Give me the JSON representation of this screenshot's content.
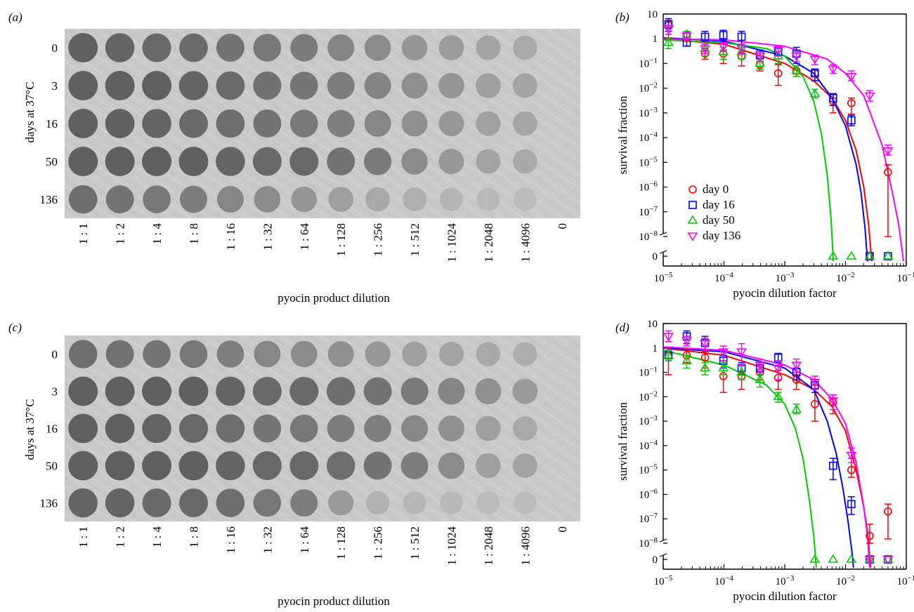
{
  "figure": {
    "panels": [
      {
        "kind": "photo",
        "label": "(a)",
        "row_label": "days at 37°C",
        "rows": [
          "0",
          "3",
          "16",
          "50",
          "136"
        ],
        "columns": [
          "1 : 1",
          "1 : 2",
          "1 : 4",
          "1 : 8",
          "1 : 16",
          "1 : 32",
          "1 : 64",
          "1 : 128",
          "1 : 256",
          "1 : 512",
          "1 : 1024",
          "1 : 2048",
          "1 : 4096",
          "0"
        ],
        "xlabel": "pyocin product dilution",
        "spot_intensity": [
          [
            1.0,
            0.95,
            0.9,
            0.88,
            0.8,
            0.75,
            0.72,
            0.62,
            0.55,
            0.45,
            0.38,
            0.3,
            0.25,
            0.0
          ],
          [
            1.0,
            1.0,
            1.0,
            0.95,
            0.88,
            0.82,
            0.78,
            0.7,
            0.62,
            0.52,
            0.45,
            0.35,
            0.3,
            0.0
          ],
          [
            1.0,
            0.98,
            0.95,
            0.9,
            0.85,
            0.8,
            0.75,
            0.68,
            0.6,
            0.5,
            0.42,
            0.33,
            0.28,
            0.0
          ],
          [
            1.0,
            1.0,
            1.0,
            1.0,
            0.95,
            0.9,
            0.9,
            0.8,
            0.72,
            0.55,
            0.42,
            0.3,
            0.25,
            0.0
          ],
          [
            0.85,
            0.8,
            0.75,
            0.7,
            0.6,
            0.55,
            0.45,
            0.35,
            0.25,
            0.18,
            0.12,
            0.08,
            0.05,
            0.0
          ]
        ]
      },
      {
        "kind": "photo",
        "label": "(c)",
        "row_label": "days at 37°C",
        "rows": [
          "0",
          "3",
          "16",
          "50",
          "136"
        ],
        "columns": [
          "1 : 1",
          "1 : 2",
          "1 : 4",
          "1 : 8",
          "1 : 16",
          "1 : 32",
          "1 : 64",
          "1 : 128",
          "1 : 256",
          "1 : 512",
          "1 : 1024",
          "1 : 2048",
          "1 : 4096",
          "0"
        ],
        "xlabel": "pyocin product dilution",
        "spot_intensity": [
          [
            0.85,
            0.8,
            0.78,
            0.75,
            0.68,
            0.6,
            0.55,
            0.5,
            0.42,
            0.35,
            0.3,
            0.25,
            0.2,
            0.0
          ],
          [
            1.0,
            1.0,
            1.0,
            1.0,
            0.95,
            0.9,
            0.9,
            0.85,
            0.8,
            0.72,
            0.62,
            0.5,
            0.4,
            0.0
          ],
          [
            1.0,
            1.0,
            0.95,
            0.92,
            0.85,
            0.78,
            0.75,
            0.7,
            0.68,
            0.6,
            0.5,
            0.35,
            0.25,
            0.0
          ],
          [
            1.0,
            1.0,
            1.0,
            1.0,
            0.95,
            0.92,
            0.9,
            0.85,
            0.8,
            0.7,
            0.55,
            0.35,
            0.3,
            0.0
          ],
          [
            0.95,
            0.95,
            0.9,
            0.9,
            0.85,
            0.75,
            0.7,
            0.4,
            0.15,
            0.1,
            0.08,
            0.06,
            0.04,
            0.0
          ]
        ]
      }
    ]
  },
  "chart_data": [
    {
      "type": "scatter",
      "panel_label": "(b)",
      "xlabel": "pyocin dilution factor",
      "ylabel": "survival fraction",
      "xscale": "log",
      "yscale": "log",
      "xlim": [
        1e-05,
        0.1
      ],
      "ylim": [
        1e-08,
        10
      ],
      "x_tick_labels": [
        "10−5",
        "10−4",
        "10−3",
        "10−2",
        "10−1"
      ],
      "y_tick_labels": [
        "10",
        "1",
        "10−1",
        "10−2",
        "10−3",
        "10−4",
        "10−5",
        "10−6",
        "10−7",
        "10−8",
        "0"
      ],
      "zero_row_label": "0",
      "legend": "bottom-left",
      "series": [
        {
          "name": "day 0",
          "color": "#ff0000",
          "marker": "circle",
          "x": [
            1.22e-05,
            2.44e-05,
            4.88e-05,
            9.77e-05,
            0.000195,
            0.000391,
            0.000781,
            0.00156,
            0.00313,
            0.00625,
            0.0125,
            0.025,
            0.05
          ],
          "y": [
            3.5,
            1.4,
            0.25,
            0.25,
            0.2,
            0.09,
            0.04,
            0.05,
            0.04,
            0.003,
            0.0025,
            0,
            4e-06
          ],
          "err_lo": [
            1.0,
            0.8,
            0.15,
            0.1,
            0.08,
            0.05,
            0.013,
            0.03,
            0.02,
            0.001,
            0.0009,
            0,
            1e-08
          ],
          "err_hi": [
            5.5,
            1.7,
            0.4,
            0.35,
            0.3,
            0.12,
            0.09,
            0.08,
            0.06,
            0.006,
            0.004,
            0,
            8e-06
          ],
          "fit": {
            "x": [
              1e-05,
              0.0001,
              0.001,
              0.003,
              0.006,
              0.01,
              0.015,
              0.02,
              0.024,
              0.026,
              0.027
            ],
            "y": [
              1.0,
              0.6,
              0.1,
              0.02,
              0.004,
              0.0005,
              3e-05,
              1e-06,
              3e-08,
              3e-09,
              1e-09
            ]
          }
        },
        {
          "name": "day 16",
          "color": "#0000ff",
          "marker": "square",
          "x": [
            1.22e-05,
            2.44e-05,
            4.88e-05,
            9.77e-05,
            0.000195,
            0.000391,
            0.000781,
            0.00156,
            0.00313,
            0.00625,
            0.0125,
            0.025,
            0.05
          ],
          "y": [
            3.8,
            0.7,
            1.2,
            1.4,
            1.2,
            0.22,
            0.3,
            0.25,
            0.04,
            0.004,
            0.0005,
            0,
            0
          ],
          "err_lo": [
            2.0,
            0.5,
            0.8,
            0.9,
            0.6,
            0.12,
            0.1,
            0.1,
            0.02,
            0.002,
            0.0003,
            0,
            0
          ],
          "err_hi": [
            6.5,
            1.0,
            2.0,
            2.2,
            2.0,
            0.35,
            0.5,
            0.45,
            0.06,
            0.006,
            0.0008,
            0,
            0
          ],
          "fit": {
            "x": [
              1e-05,
              0.0001,
              0.001,
              0.003,
              0.006,
              0.01,
              0.015,
              0.018,
              0.021,
              0.023
            ],
            "y": [
              1.1,
              0.8,
              0.2,
              0.04,
              0.004,
              0.0003,
              8e-06,
              6e-07,
              2e-08,
              1e-09
            ]
          }
        },
        {
          "name": "day 50",
          "color": "#00cc00",
          "marker": "triangle-up",
          "x": [
            1.22e-05,
            2.44e-05,
            4.88e-05,
            9.77e-05,
            0.000195,
            0.000391,
            0.000781,
            0.00156,
            0.00313,
            0.00625,
            0.0125,
            0.025,
            0.05
          ],
          "y": [
            0.7,
            1.5,
            0.4,
            0.3,
            0.3,
            0.1,
            0.2,
            0.05,
            0.006,
            0,
            0,
            0,
            0
          ],
          "err_lo": [
            0.4,
            1.0,
            0.2,
            0.15,
            0.15,
            0.06,
            0.1,
            0.03,
            0.004,
            0,
            0,
            0,
            0
          ],
          "err_hi": [
            1.1,
            2.0,
            0.6,
            0.45,
            0.45,
            0.14,
            0.3,
            0.08,
            0.009,
            0,
            0,
            0,
            0
          ],
          "fit": {
            "x": [
              1e-05,
              0.0001,
              0.0005,
              0.001,
              0.002,
              0.003,
              0.004,
              0.005,
              0.0058,
              0.0063
            ],
            "y": [
              0.9,
              0.7,
              0.4,
              0.2,
              0.03,
              0.003,
              0.00015,
              3e-06,
              5e-08,
              1e-09
            ]
          }
        },
        {
          "name": "day 136",
          "color": "#ff00ff",
          "marker": "triangle-down",
          "x": [
            1.22e-05,
            2.44e-05,
            4.88e-05,
            9.77e-05,
            0.000195,
            0.000391,
            0.000781,
            0.00156,
            0.00313,
            0.00625,
            0.0125,
            0.025,
            0.05
          ],
          "y": [
            2.5,
            1.3,
            0.4,
            0.5,
            0.4,
            0.2,
            0.35,
            0.2,
            0.15,
            0.06,
            0.03,
            0.005,
            3e-05
          ],
          "err_lo": [
            1.5,
            0.9,
            0.25,
            0.3,
            0.25,
            0.12,
            0.2,
            0.12,
            0.09,
            0.04,
            0.02,
            0.003,
            2e-05
          ],
          "err_hi": [
            3.5,
            1.8,
            0.6,
            0.7,
            0.6,
            0.3,
            0.5,
            0.3,
            0.22,
            0.09,
            0.05,
            0.008,
            5e-05
          ],
          "fit": {
            "x": [
              1e-05,
              0.0001,
              0.001,
              0.005,
              0.01,
              0.02,
              0.04,
              0.06,
              0.075,
              0.085,
              0.09
            ],
            "y": [
              1.0,
              0.9,
              0.5,
              0.15,
              0.04,
              0.005,
              5e-05,
              5e-07,
              3e-08,
              3e-09,
              1e-09
            ]
          }
        }
      ]
    },
    {
      "type": "scatter",
      "panel_label": "(d)",
      "xlabel": "pyocin dilution factor",
      "ylabel": "survival fraction",
      "xscale": "log",
      "yscale": "log",
      "xlim": [
        1e-05,
        0.1
      ],
      "ylim": [
        1e-08,
        10
      ],
      "x_tick_labels": [
        "10−5",
        "10−4",
        "10−3",
        "10−2",
        "10−1"
      ],
      "y_tick_labels": [
        "10",
        "1",
        "10−1",
        "10−2",
        "10−3",
        "10−4",
        "10−5",
        "10−6",
        "10−7",
        "10−8",
        "0"
      ],
      "zero_row_label": "0",
      "series": [
        {
          "name": "day 0",
          "color": "#ff0000",
          "marker": "circle",
          "x": [
            1.22e-05,
            2.44e-05,
            4.88e-05,
            9.77e-05,
            0.000195,
            0.000391,
            0.000781,
            0.00156,
            0.00313,
            0.00625,
            0.0125,
            0.025,
            0.05
          ],
          "y": [
            0.5,
            0.5,
            0.4,
            0.07,
            0.07,
            0.1,
            0.06,
            0.05,
            0.005,
            0.006,
            1e-05,
            2e-08,
            2e-07
          ],
          "err_lo": [
            0.08,
            0.25,
            0.15,
            0.015,
            0.02,
            0.05,
            0.02,
            0.02,
            0.001,
            0.002,
            5e-06,
            1e-08,
            1.5e-08
          ],
          "err_hi": [
            1.0,
            0.8,
            0.7,
            0.3,
            0.2,
            0.2,
            0.12,
            0.08,
            0.03,
            0.012,
            3e-05,
            6e-08,
            4e-07
          ],
          "fit": {
            "x": [
              1e-05,
              0.0001,
              0.001,
              0.003,
              0.006,
              0.01,
              0.015,
              0.02,
              0.023,
              0.025,
              0.026
            ],
            "y": [
              1.0,
              0.5,
              0.08,
              0.02,
              0.004,
              0.0004,
              1e-05,
              3e-07,
              3e-08,
              3e-09,
              1e-09
            ]
          }
        },
        {
          "name": "day 16",
          "color": "#0000ff",
          "marker": "square",
          "x": [
            1.22e-05,
            2.44e-05,
            4.88e-05,
            9.77e-05,
            0.000195,
            0.000391,
            0.000781,
            0.00156,
            0.00313,
            0.00625,
            0.0125,
            0.025,
            0.05
          ],
          "y": [
            0.5,
            3.0,
            1.6,
            0.3,
            0.15,
            0.15,
            0.4,
            0.1,
            0.03,
            1.5e-05,
            4e-07,
            0,
            0
          ],
          "err_lo": [
            0.3,
            1.5,
            0.8,
            0.15,
            0.08,
            0.08,
            0.25,
            0.05,
            0.015,
            4e-06,
            1.5e-07,
            0,
            0
          ],
          "err_hi": [
            0.8,
            5.0,
            3.0,
            0.5,
            0.25,
            0.25,
            0.6,
            0.15,
            0.05,
            3e-05,
            8e-07,
            0,
            0
          ],
          "fit": {
            "x": [
              1e-05,
              0.0001,
              0.001,
              0.003,
              0.005,
              0.007,
              0.009,
              0.011,
              0.013,
              0.0135
            ],
            "y": [
              1.0,
              0.7,
              0.15,
              0.02,
              0.001,
              5e-05,
              2e-06,
              8e-08,
              3e-09,
              1e-09
            ]
          }
        },
        {
          "name": "day 50",
          "color": "#00cc00",
          "marker": "triangle-up",
          "x": [
            1.22e-05,
            2.44e-05,
            4.88e-05,
            9.77e-05,
            0.000195,
            0.000391,
            0.000781,
            0.00156,
            0.00313,
            0.00625,
            0.0125,
            0.025,
            0.05
          ],
          "y": [
            0.5,
            0.3,
            0.15,
            0.15,
            0.1,
            0.05,
            0.01,
            0.003,
            0,
            0,
            0,
            0,
            0
          ],
          "err_lo": [
            0.3,
            0.15,
            0.08,
            0.08,
            0.05,
            0.025,
            0.006,
            0.002,
            0,
            0,
            0,
            0,
            0
          ],
          "err_hi": [
            0.8,
            0.5,
            0.25,
            0.25,
            0.18,
            0.08,
            0.015,
            0.005,
            0,
            0,
            0,
            0,
            0
          ],
          "fit": {
            "x": [
              1e-05,
              0.0001,
              0.0005,
              0.001,
              0.0015,
              0.002,
              0.0025,
              0.003,
              0.0033
            ],
            "y": [
              0.8,
              0.2,
              0.03,
              0.005,
              0.0005,
              3e-05,
              8e-07,
              2e-08,
              1e-09
            ]
          }
        },
        {
          "name": "day 136",
          "color": "#ff00ff",
          "marker": "triangle-down",
          "x": [
            1.22e-05,
            2.44e-05,
            4.88e-05,
            9.77e-05,
            0.000195,
            0.000391,
            0.000781,
            0.00156,
            0.00313,
            0.00625,
            0.0125,
            0.025,
            0.05
          ],
          "y": [
            3.0,
            2.0,
            1.5,
            0.7,
            0.7,
            0.2,
            0.15,
            0.2,
            0.04,
            0.007,
            4e-05,
            0,
            0
          ],
          "err_lo": [
            1.8,
            1.2,
            0.8,
            0.3,
            0.2,
            0.1,
            0.05,
            0.1,
            0.02,
            0.003,
            2e-05,
            0,
            0
          ],
          "err_hi": [
            5.0,
            3.0,
            2.5,
            1.2,
            1.5,
            0.35,
            0.3,
            0.35,
            0.07,
            0.012,
            8e-05,
            0,
            0
          ],
          "fit": {
            "x": [
              1e-05,
              0.0001,
              0.001,
              0.003,
              0.006,
              0.01,
              0.015,
              0.02,
              0.023,
              0.025
            ],
            "y": [
              1.1,
              0.8,
              0.2,
              0.05,
              0.008,
              0.0008,
              2e-05,
              3e-07,
              2e-08,
              1e-09
            ]
          }
        }
      ]
    }
  ]
}
